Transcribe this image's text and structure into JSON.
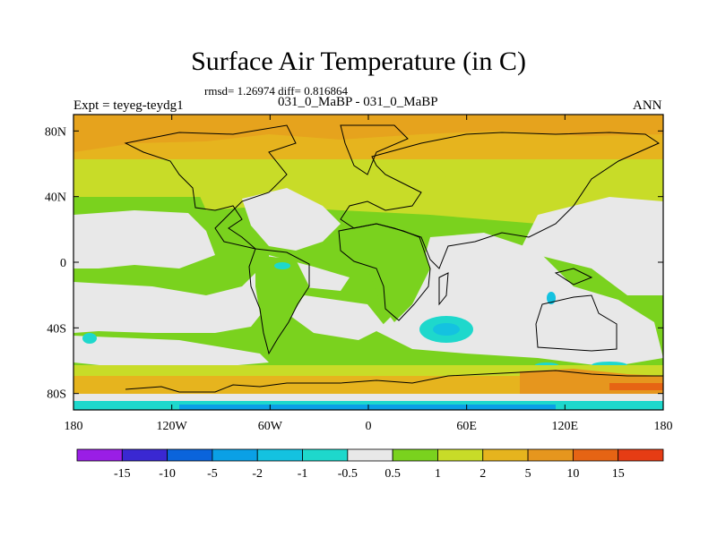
{
  "figure": {
    "title": "Surface Air Temperature (in C)",
    "stats": "rmsd= 1.26974 diff= 0.816864",
    "experiment": "Expt = teyeg-teydg1",
    "comparison": "031_0_MaBP - 031_0_MaBP",
    "period": "ANN"
  },
  "chart_data": {
    "type": "heatmap",
    "title": "Surface Air Temperature (in C)",
    "subtitle": "031_0_MaBP - 031_0_MaBP",
    "xlabel": "",
    "ylabel": "",
    "x_range": [
      -180,
      180
    ],
    "y_range": [
      -90,
      90
    ],
    "x_ticks": [
      {
        "value": -180,
        "label": "180"
      },
      {
        "value": -120,
        "label": "120W"
      },
      {
        "value": -60,
        "label": "60W"
      },
      {
        "value": 0,
        "label": "0"
      },
      {
        "value": 60,
        "label": "60E"
      },
      {
        "value": 120,
        "label": "120E"
      },
      {
        "value": 180,
        "label": "180"
      }
    ],
    "y_ticks": [
      {
        "value": 80,
        "label": "80N"
      },
      {
        "value": 40,
        "label": "40N"
      },
      {
        "value": 0,
        "label": "0"
      },
      {
        "value": -40,
        "label": "40S"
      },
      {
        "value": -80,
        "label": "80S"
      }
    ],
    "colorbar": {
      "labels": [
        "-15",
        "-10",
        "-5",
        "-2",
        "-1",
        "-0.5",
        "0.5",
        "1",
        "2",
        "5",
        "10",
        "15"
      ],
      "colors": [
        "#9a1ee6",
        "#3a28d2",
        "#0a64dc",
        "#0aa0e6",
        "#14c2e0",
        "#1ed8cc",
        "#e8e8e8",
        "#7ad21e",
        "#c8dc28",
        "#e6b41e",
        "#e6961e",
        "#e66414",
        "#e63c14"
      ]
    },
    "grid": false,
    "legend": "bottom colorbar"
  }
}
